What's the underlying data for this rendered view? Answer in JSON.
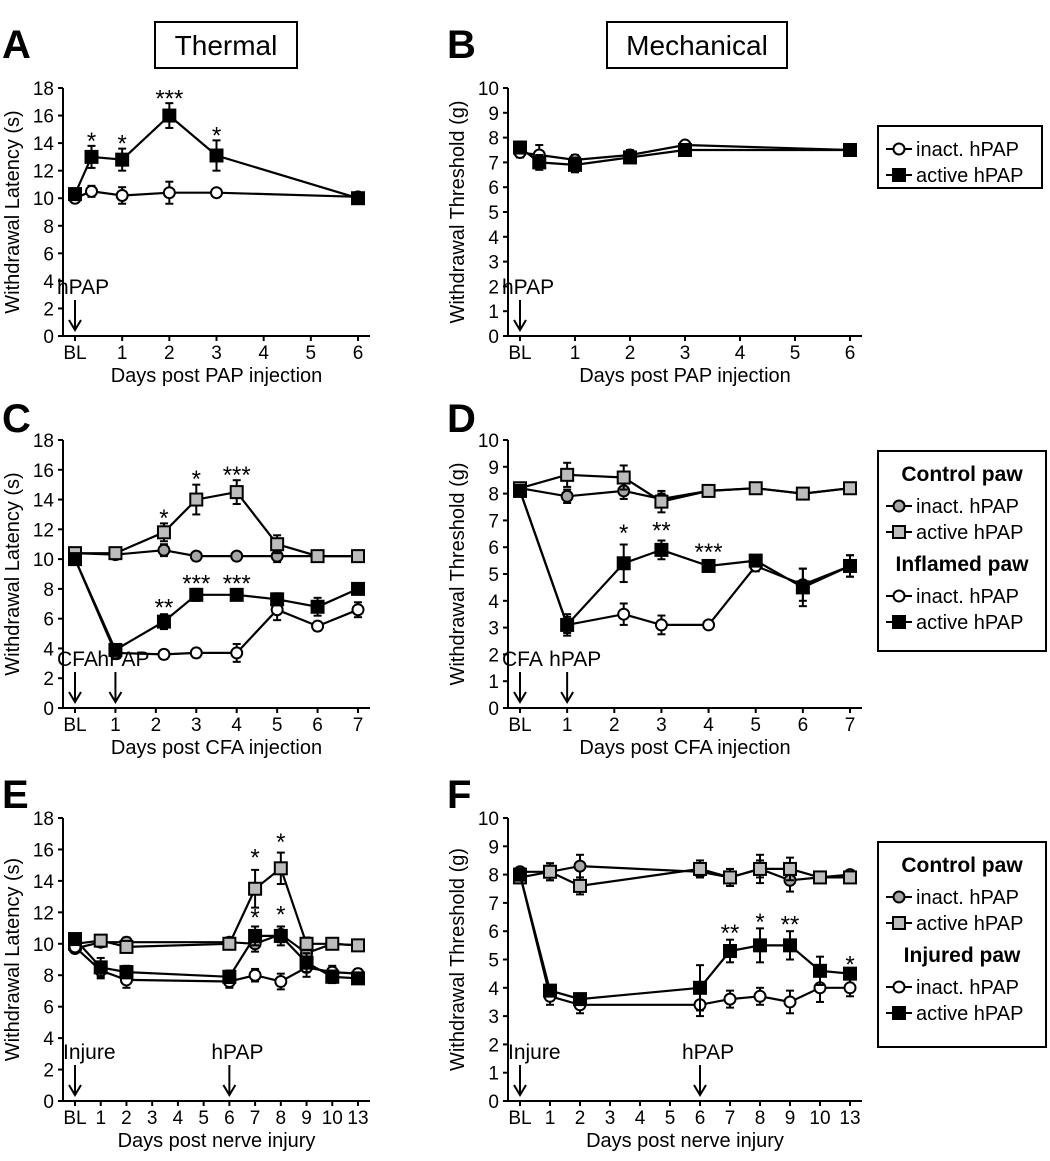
{
  "chart_data": [
    {
      "panel": "A",
      "column_title": "Thermal",
      "type": "line",
      "xlabel": "Days post PAP injection",
      "ylabel": "Withdrawal Latency (s)",
      "x_ticks": [
        "BL",
        "1",
        "2",
        "3",
        "4",
        "5",
        "6"
      ],
      "y_ticks": [
        "0",
        "2",
        "4",
        "6",
        "8",
        "10",
        "12",
        "14",
        "16",
        "18"
      ],
      "ylim": [
        0,
        18
      ],
      "annotations": [
        {
          "label": "hPAP",
          "x": 0
        }
      ],
      "legend": null,
      "series": [
        {
          "name": "inact. hPAP",
          "marker": "circle",
          "fill": "#ffffff",
          "x": [
            0,
            0.35,
            1,
            2,
            3,
            6
          ],
          "y": [
            10.0,
            10.5,
            10.2,
            10.4,
            10.4,
            10.1
          ],
          "err": [
            0.3,
            0.4,
            0.6,
            0.8,
            0.3,
            0.2
          ]
        },
        {
          "name": "active hPAP",
          "marker": "square",
          "fill": "#000000",
          "x": [
            0,
            0.35,
            1,
            2,
            3,
            6
          ],
          "y": [
            10.3,
            13.0,
            12.8,
            16.0,
            13.1,
            10.0
          ],
          "err": [
            0.3,
            0.8,
            0.8,
            0.9,
            1.1,
            0.3
          ]
        }
      ],
      "significance": [
        {
          "x": 0.35,
          "y": 14.3,
          "label": "*"
        },
        {
          "x": 1,
          "y": 14.1,
          "label": "*"
        },
        {
          "x": 2,
          "y": 17.4,
          "label": "***"
        },
        {
          "x": 3,
          "y": 14.7,
          "label": "*"
        }
      ]
    },
    {
      "panel": "B",
      "column_title": "Mechanical",
      "type": "line",
      "xlabel": "Days post PAP injection",
      "ylabel": "Withdrawal Threshold (g)",
      "x_ticks": [
        "BL",
        "1",
        "2",
        "3",
        "4",
        "5",
        "6"
      ],
      "y_ticks": [
        "0",
        "1",
        "2",
        "3",
        "4",
        "5",
        "6",
        "7",
        "8",
        "9",
        "10"
      ],
      "ylim": [
        0,
        10
      ],
      "annotations": [
        {
          "label": "hPAP",
          "x": 0
        }
      ],
      "legend": {
        "groups": [
          {
            "title": "",
            "entries": [
              "inact. hPAP",
              "active hPAP"
            ]
          }
        ]
      },
      "series": [
        {
          "name": "inact. hPAP",
          "marker": "circle",
          "fill": "#ffffff",
          "x": [
            0,
            0.35,
            1,
            2,
            3,
            6
          ],
          "y": [
            7.4,
            7.3,
            7.1,
            7.3,
            7.7,
            7.5
          ],
          "err": [
            0.2,
            0.4,
            0.2,
            0.2,
            0.15,
            0.15
          ]
        },
        {
          "name": "active hPAP",
          "marker": "square",
          "fill": "#000000",
          "x": [
            0,
            0.35,
            1,
            2,
            3,
            6
          ],
          "y": [
            7.6,
            7.0,
            6.9,
            7.2,
            7.5,
            7.5
          ],
          "err": [
            0.15,
            0.3,
            0.3,
            0.2,
            0.15,
            0.15
          ]
        }
      ],
      "significance": []
    },
    {
      "panel": "C",
      "type": "line",
      "xlabel": "Days post CFA injection",
      "ylabel": "Withdrawal Latency (s)",
      "x_ticks": [
        "BL",
        "1",
        "2",
        "3",
        "4",
        "5",
        "6",
        "7"
      ],
      "y_ticks": [
        "0",
        "2",
        "4",
        "6",
        "8",
        "10",
        "12",
        "14",
        "16",
        "18"
      ],
      "ylim": [
        0,
        18
      ],
      "annotations": [
        {
          "label": "CFA",
          "x": 0
        },
        {
          "label": "hPAP",
          "x": 1
        }
      ],
      "legend": null,
      "series": [
        {
          "name": "Control paw inact. hPAP",
          "marker": "circle",
          "fill": "#a6a6a6",
          "x": [
            0,
            1,
            2.2,
            3,
            4,
            5,
            6,
            7
          ],
          "y": [
            10.4,
            10.3,
            10.6,
            10.2,
            10.2,
            10.2,
            10.2,
            10.2
          ],
          "err": [
            0.2,
            0.3,
            0.4,
            0.2,
            0.2,
            0.4,
            0.3,
            0.3
          ]
        },
        {
          "name": "Control paw active hPAP",
          "marker": "square",
          "fill": "#bcbcbc",
          "x": [
            0,
            1,
            2.2,
            3,
            4,
            5,
            6,
            7
          ],
          "y": [
            10.4,
            10.4,
            11.8,
            14.0,
            14.5,
            11.0,
            10.2,
            10.2
          ],
          "err": [
            0.2,
            0.2,
            0.6,
            1.0,
            0.8,
            0.6,
            0.3,
            0.3
          ]
        },
        {
          "name": "Inflamed paw inact. hPAP",
          "marker": "circle",
          "fill": "#ffffff",
          "x": [
            0,
            1,
            2.2,
            3,
            4,
            5,
            6,
            7
          ],
          "y": [
            10.0,
            3.7,
            3.6,
            3.7,
            3.7,
            6.6,
            5.5,
            6.6
          ],
          "err": [
            0.2,
            0.2,
            0.3,
            0.3,
            0.6,
            0.7,
            0.3,
            0.5
          ]
        },
        {
          "name": "Inflamed paw active hPAP",
          "marker": "square",
          "fill": "#000000",
          "x": [
            0,
            1,
            2.2,
            3,
            4,
            5,
            6,
            7
          ],
          "y": [
            10.0,
            3.9,
            5.8,
            7.6,
            7.6,
            7.3,
            6.8,
            8.0
          ],
          "err": [
            0.2,
            0.3,
            0.5,
            0.4,
            0.3,
            0.4,
            0.6,
            0.3
          ]
        }
      ],
      "significance": [
        {
          "x": 2.2,
          "y": 12.9,
          "label": "*"
        },
        {
          "x": 3,
          "y": 15.5,
          "label": "*"
        },
        {
          "x": 4,
          "y": 15.8,
          "label": "***"
        },
        {
          "x": 2.2,
          "y": 6.9,
          "label": "**"
        },
        {
          "x": 3,
          "y": 8.5,
          "label": "***"
        },
        {
          "x": 4,
          "y": 8.5,
          "label": "***"
        }
      ]
    },
    {
      "panel": "D",
      "type": "line",
      "xlabel": "Days post CFA injection",
      "ylabel": "Withdrawal Threshold (g)",
      "x_ticks": [
        "BL",
        "1",
        "2",
        "3",
        "4",
        "5",
        "6",
        "7"
      ],
      "y_ticks": [
        "0",
        "1",
        "2",
        "3",
        "4",
        "5",
        "6",
        "7",
        "8",
        "9",
        "10"
      ],
      "ylim": [
        0,
        10
      ],
      "annotations": [
        {
          "label": "CFA",
          "x": 0
        },
        {
          "label": "hPAP",
          "x": 1
        }
      ],
      "legend": {
        "groups": [
          {
            "title": "Control paw",
            "entries": [
              "inact. hPAP",
              "active hPAP"
            ]
          },
          {
            "title": "Inflamed paw",
            "entries": [
              "inact. hPAP",
              "active hPAP"
            ]
          }
        ]
      },
      "series": [
        {
          "name": "Control paw inact. hPAP",
          "marker": "circle",
          "fill": "#a6a6a6",
          "x": [
            0,
            1,
            2.2,
            3,
            4,
            5,
            6,
            7
          ],
          "y": [
            8.2,
            7.9,
            8.1,
            7.8,
            8.1,
            8.2,
            8.0,
            8.2
          ],
          "err": [
            0.15,
            0.25,
            0.3,
            0.2,
            0.15,
            0.15,
            0.15,
            0.1
          ]
        },
        {
          "name": "Control paw active hPAP",
          "marker": "square",
          "fill": "#bcbcbc",
          "x": [
            0,
            1,
            2.2,
            3,
            4,
            5,
            6,
            7
          ],
          "y": [
            8.2,
            8.7,
            8.6,
            7.7,
            8.1,
            8.2,
            8.0,
            8.2
          ],
          "err": [
            0.15,
            0.45,
            0.45,
            0.4,
            0.15,
            0.15,
            0.15,
            0.1
          ]
        },
        {
          "name": "Inflamed paw inact. hPAP",
          "marker": "circle",
          "fill": "#ffffff",
          "x": [
            0,
            1,
            2.2,
            3,
            4,
            5,
            6,
            7
          ],
          "y": [
            8.1,
            3.1,
            3.5,
            3.1,
            3.1,
            5.3,
            4.6,
            5.3
          ],
          "err": [
            0.15,
            0.3,
            0.4,
            0.35,
            0.1,
            0.2,
            0.6,
            0.4
          ]
        },
        {
          "name": "Inflamed paw active hPAP",
          "marker": "square",
          "fill": "#000000",
          "x": [
            0,
            1,
            2.2,
            3,
            4,
            5,
            6,
            7
          ],
          "y": [
            8.1,
            3.1,
            5.4,
            5.9,
            5.3,
            5.5,
            4.5,
            5.3
          ],
          "err": [
            0.15,
            0.4,
            0.7,
            0.35,
            0.2,
            0.2,
            0.7,
            0.4
          ]
        }
      ],
      "significance": [
        {
          "x": 2.2,
          "y": 6.6,
          "label": "*"
        },
        {
          "x": 3,
          "y": 6.7,
          "label": "**"
        },
        {
          "x": 4,
          "y": 5.9,
          "label": "***"
        }
      ]
    },
    {
      "panel": "E",
      "type": "line",
      "xlabel": "Days post nerve injury",
      "ylabel": "Withdrawal Latency (s)",
      "x_ticks": [
        "BL",
        "1",
        "2",
        "3",
        "4",
        "5",
        "6",
        "7",
        "8",
        "9",
        "10",
        "13"
      ],
      "y_ticks": [
        "0",
        "2",
        "4",
        "6",
        "8",
        "10",
        "12",
        "14",
        "16",
        "18"
      ],
      "ylim": [
        0,
        18
      ],
      "annotations": [
        {
          "label": "Injure",
          "x": 0
        },
        {
          "label": "hPAP",
          "x": 6
        }
      ],
      "legend": null,
      "series": [
        {
          "name": "Control paw inact. hPAP",
          "marker": "circle",
          "fill": "#a6a6a6",
          "x": [
            0,
            1,
            2,
            6,
            7,
            8,
            9,
            10,
            13
          ],
          "y": [
            9.7,
            10.1,
            10.1,
            10.1,
            10.0,
            10.6,
            9.4,
            10.0,
            9.9
          ],
          "err": [
            0.2,
            0.3,
            0.3,
            0.3,
            0.5,
            0.5,
            0.5,
            0.3,
            0.3
          ]
        },
        {
          "name": "Control paw active hPAP",
          "marker": "square",
          "fill": "#bcbcbc",
          "x": [
            0,
            1,
            2,
            6,
            7,
            8,
            9,
            10,
            13
          ],
          "y": [
            10.0,
            10.2,
            9.8,
            10.0,
            13.5,
            14.8,
            10.0,
            10.0,
            9.9
          ],
          "err": [
            0.2,
            0.3,
            0.3,
            0.3,
            1.2,
            1.0,
            0.4,
            0.3,
            0.2
          ]
        },
        {
          "name": "Injured paw inact. hPAP",
          "marker": "circle",
          "fill": "#ffffff",
          "x": [
            0,
            1,
            2,
            6,
            7,
            8,
            9,
            10,
            13
          ],
          "y": [
            9.8,
            8.3,
            7.7,
            7.6,
            8.0,
            7.6,
            8.5,
            8.2,
            8.1
          ],
          "err": [
            0.3,
            0.5,
            0.5,
            0.4,
            0.4,
            0.5,
            0.6,
            0.4,
            0.3
          ]
        },
        {
          "name": "Injured paw active hPAP",
          "marker": "square",
          "fill": "#000000",
          "x": [
            0,
            1,
            2,
            6,
            7,
            8,
            9,
            10,
            13
          ],
          "y": [
            10.3,
            8.5,
            8.2,
            7.9,
            10.5,
            10.5,
            8.8,
            7.9,
            7.8
          ],
          "err": [
            0.2,
            0.6,
            0.4,
            0.4,
            0.6,
            0.6,
            0.6,
            0.4,
            0.2
          ]
        }
      ],
      "significance": [
        {
          "x": 7,
          "y": 15.6,
          "label": "*"
        },
        {
          "x": 8,
          "y": 16.6,
          "label": "*"
        },
        {
          "x": 7,
          "y": 11.8,
          "label": "*"
        },
        {
          "x": 8,
          "y": 12.0,
          "label": "*"
        }
      ]
    },
    {
      "panel": "F",
      "type": "line",
      "xlabel": "Days post nerve injury",
      "ylabel": "Withdrawal Threshold (g)",
      "x_ticks": [
        "BL",
        "1",
        "2",
        "3",
        "4",
        "5",
        "6",
        "7",
        "8",
        "9",
        "10",
        "13"
      ],
      "y_ticks": [
        "0",
        "1",
        "2",
        "3",
        "4",
        "5",
        "6",
        "7",
        "8",
        "9",
        "10"
      ],
      "ylim": [
        0,
        10
      ],
      "annotations": [
        {
          "label": "Injure",
          "x": 0
        },
        {
          "label": "hPAP",
          "x": 6
        }
      ],
      "legend": {
        "groups": [
          {
            "title": "Control paw",
            "entries": [
              "inact. hPAP",
              "active hPAP"
            ]
          },
          {
            "title": "Injured paw",
            "entries": [
              "inact. hPAP",
              "active hPAP"
            ]
          }
        ]
      },
      "series": [
        {
          "name": "Control paw inact. hPAP",
          "marker": "circle",
          "fill": "#a6a6a6",
          "x": [
            0,
            1,
            2,
            6,
            7,
            8,
            9,
            10,
            13
          ],
          "y": [
            8.1,
            8.1,
            8.3,
            8.1,
            7.9,
            8.2,
            7.8,
            7.9,
            8.0
          ],
          "err": [
            0.15,
            0.3,
            0.4,
            0.2,
            0.3,
            0.3,
            0.4,
            0.15,
            0.15
          ]
        },
        {
          "name": "Control paw active hPAP",
          "marker": "square",
          "fill": "#bcbcbc",
          "x": [
            0,
            1,
            2,
            6,
            7,
            8,
            9,
            10,
            13
          ],
          "y": [
            7.9,
            8.1,
            7.6,
            8.2,
            7.9,
            8.2,
            8.2,
            7.9,
            7.9
          ],
          "err": [
            0.15,
            0.3,
            0.3,
            0.3,
            0.3,
            0.5,
            0.4,
            0.15,
            0.15
          ]
        },
        {
          "name": "Injured paw inact. hPAP",
          "marker": "circle",
          "fill": "#ffffff",
          "x": [
            0,
            1,
            2,
            6,
            7,
            8,
            9,
            10,
            13
          ],
          "y": [
            8.0,
            3.7,
            3.4,
            3.4,
            3.6,
            3.7,
            3.5,
            4.0,
            4.0
          ],
          "err": [
            0.15,
            0.3,
            0.3,
            0.4,
            0.3,
            0.3,
            0.4,
            0.5,
            0.3
          ]
        },
        {
          "name": "Injured paw active hPAP",
          "marker": "square",
          "fill": "#000000",
          "x": [
            0,
            1,
            2,
            6,
            7,
            8,
            9,
            10,
            13
          ],
          "y": [
            8.0,
            3.9,
            3.6,
            4.0,
            5.3,
            5.5,
            5.5,
            4.6,
            4.5
          ],
          "err": [
            0.15,
            0.2,
            0.2,
            0.8,
            0.4,
            0.6,
            0.5,
            0.5,
            0.2
          ]
        }
      ],
      "significance": [
        {
          "x": 7,
          "y": 6.0,
          "label": "**"
        },
        {
          "x": 8,
          "y": 6.4,
          "label": "*"
        },
        {
          "x": 9,
          "y": 6.3,
          "label": "**"
        },
        {
          "x": 13,
          "y": 4.9,
          "label": "*"
        }
      ]
    }
  ]
}
